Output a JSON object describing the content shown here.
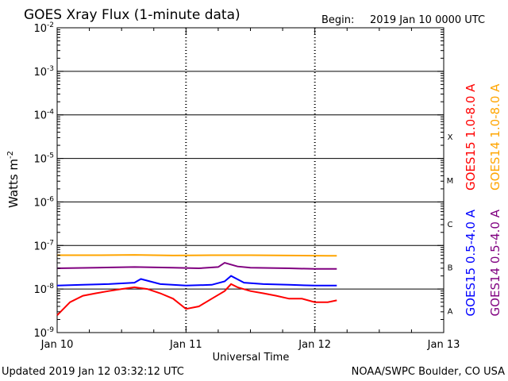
{
  "chart_data": {
    "type": "line",
    "title": "GOES Xray Flux (1-minute data)",
    "begin_label": "Begin:",
    "begin_value": "2019 Jan 10 0000 UTC",
    "xlabel": "Universal Time",
    "ylabel_main": "Watts m",
    "ylabel_sup": "-2",
    "x_ticks": [
      {
        "day": 0,
        "label": "Jan 10"
      },
      {
        "day": 1,
        "label": "Jan 11"
      },
      {
        "day": 2,
        "label": "Jan 12"
      },
      {
        "day": 3,
        "label": "Jan 13"
      }
    ],
    "xlim": [
      0,
      3
    ],
    "y_scale": "log",
    "ylim": [
      1e-09,
      0.01
    ],
    "y_ticks": [
      {
        "exp": -2,
        "base": "10",
        "sup": "-2"
      },
      {
        "exp": -3,
        "base": "10",
        "sup": "-3"
      },
      {
        "exp": -4,
        "base": "10",
        "sup": "-4"
      },
      {
        "exp": -5,
        "base": "10",
        "sup": "-5"
      },
      {
        "exp": -6,
        "base": "10",
        "sup": "-6"
      },
      {
        "exp": -7,
        "base": "10",
        "sup": "-7"
      },
      {
        "exp": -8,
        "base": "10",
        "sup": "-8"
      },
      {
        "exp": -9,
        "base": "10",
        "sup": "-9"
      }
    ],
    "flare_classes": [
      {
        "label": "X",
        "exp": -4
      },
      {
        "label": "M",
        "exp": -5
      },
      {
        "label": "C",
        "exp": -6
      },
      {
        "label": "B",
        "exp": -7
      },
      {
        "label": "A",
        "exp": -8
      }
    ],
    "grid": true,
    "series": [
      {
        "name": "GOES15 1.0-8.0 A",
        "color": "#ff0000",
        "x": [
          0,
          0.1,
          0.2,
          0.3,
          0.4,
          0.5,
          0.6,
          0.7,
          0.8,
          0.9,
          1.0,
          1.1,
          1.2,
          1.3,
          1.35,
          1.4,
          1.5,
          1.6,
          1.7,
          1.8,
          1.9,
          2.0,
          2.1,
          2.17
        ],
        "y": [
          2.5e-09,
          5e-09,
          7e-09,
          8e-09,
          9e-09,
          1e-08,
          1.1e-08,
          1e-08,
          8e-09,
          6e-09,
          3.5e-09,
          4e-09,
          6e-09,
          9e-09,
          1.3e-08,
          1.1e-08,
          9e-09,
          8e-09,
          7e-09,
          6e-09,
          6e-09,
          5e-09,
          5e-09,
          5.5e-09
        ]
      },
      {
        "name": "GOES14 1.0-8.0 A",
        "color": "#ffa500",
        "x": [
          0,
          0.3,
          0.6,
          0.9,
          1.2,
          1.5,
          1.8,
          2.1,
          2.17
        ],
        "y": [
          6e-08,
          6e-08,
          6.1e-08,
          5.9e-08,
          6e-08,
          6e-08,
          5.9e-08,
          5.8e-08,
          5.8e-08
        ]
      },
      {
        "name": "GOES15 0.5-4.0 A",
        "color": "#0000ff",
        "x": [
          0,
          0.2,
          0.4,
          0.6,
          0.65,
          0.8,
          1.0,
          1.2,
          1.3,
          1.35,
          1.45,
          1.6,
          1.8,
          2.0,
          2.17
        ],
        "y": [
          1.2e-08,
          1.25e-08,
          1.3e-08,
          1.4e-08,
          1.7e-08,
          1.3e-08,
          1.2e-08,
          1.25e-08,
          1.5e-08,
          2e-08,
          1.4e-08,
          1.3e-08,
          1.25e-08,
          1.2e-08,
          1.2e-08
        ]
      },
      {
        "name": "GOES14 0.5-4.0 A",
        "color": "#800080",
        "x": [
          0,
          0.3,
          0.6,
          0.9,
          1.1,
          1.25,
          1.3,
          1.4,
          1.5,
          1.8,
          2.0,
          2.17
        ],
        "y": [
          3e-08,
          3.1e-08,
          3.2e-08,
          3.1e-08,
          3e-08,
          3.2e-08,
          4e-08,
          3.3e-08,
          3.1e-08,
          3e-08,
          2.9e-08,
          2.9e-08
        ]
      }
    ]
  },
  "footer": {
    "updated": "Updated 2019 Jan 12 03:32:12 UTC",
    "credit": "NOAA/SWPC Boulder, CO USA"
  }
}
